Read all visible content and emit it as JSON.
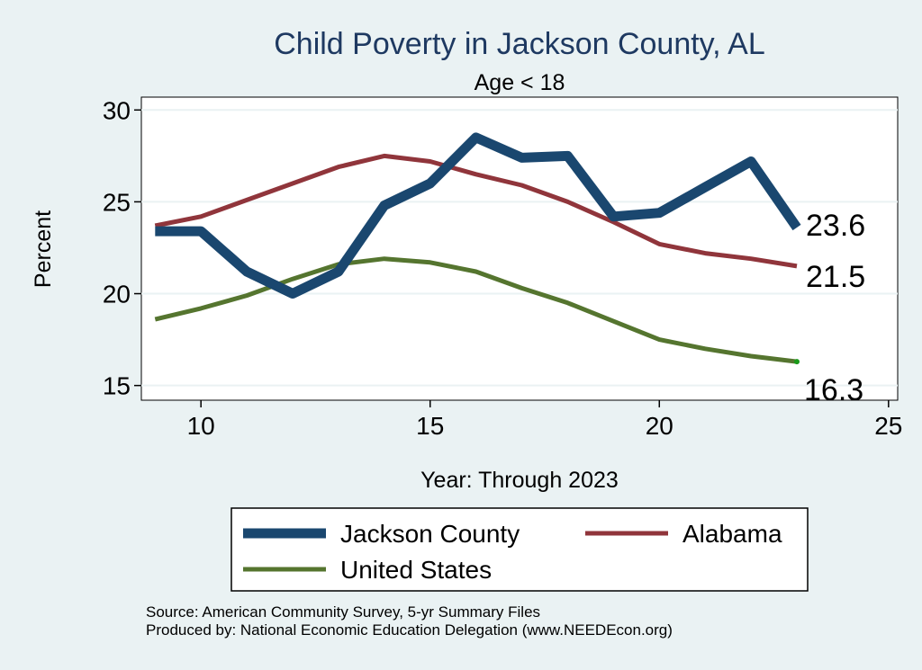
{
  "chart_data": {
    "type": "line",
    "title": "Child Poverty in Jackson County, AL",
    "subtitle": "Age < 18",
    "xlabel": "Year: Through 2023",
    "ylabel": "Percent",
    "xlim": [
      8.7,
      25.2
    ],
    "ylim": [
      14.2,
      30.7
    ],
    "xticks": [
      10,
      15,
      20,
      25
    ],
    "yticks": [
      15,
      20,
      25,
      30
    ],
    "x": [
      9,
      10,
      11,
      12,
      13,
      14,
      15,
      16,
      17,
      18,
      19,
      20,
      21,
      22,
      23
    ],
    "series": [
      {
        "name": "Jackson County",
        "color": "#1a476f",
        "end_label": "23.6",
        "values": [
          23.4,
          23.4,
          21.2,
          20.0,
          21.2,
          24.8,
          26.0,
          28.5,
          27.4,
          27.5,
          24.2,
          24.4,
          25.8,
          27.2,
          23.6
        ]
      },
      {
        "name": "Alabama",
        "color": "#90353b",
        "end_label": "21.5",
        "values": [
          23.7,
          24.2,
          25.1,
          26.0,
          26.9,
          27.5,
          27.2,
          26.5,
          25.9,
          25.0,
          23.9,
          22.7,
          22.2,
          21.9,
          21.5
        ]
      },
      {
        "name": "United States",
        "color": "#55752f",
        "end_label": "16.3",
        "values": [
          18.6,
          19.2,
          19.9,
          20.8,
          21.6,
          21.9,
          21.7,
          21.2,
          20.3,
          19.5,
          18.5,
          17.5,
          17.0,
          16.6,
          16.3
        ]
      }
    ]
  },
  "colors": {
    "background": "#eaf2f3",
    "plot_area": "#ffffff",
    "title": "#1e3961",
    "grid": "#eaf2f3"
  },
  "footer": {
    "source": "Source: American Community Survey, 5-yr Summary Files",
    "produced_by": "Produced by: National Economic Education Delegation (www.NEEDEcon.org)"
  }
}
